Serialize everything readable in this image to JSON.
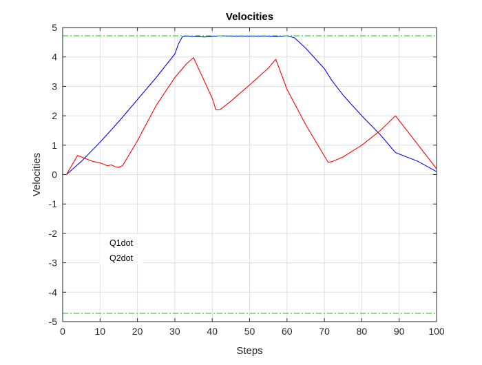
{
  "chart_data": {
    "type": "line",
    "title": "Velocities",
    "xlabel": "Steps",
    "ylabel": "Velocities",
    "xlim": [
      0,
      100
    ],
    "ylim": [
      -5,
      5
    ],
    "xticks": [
      0,
      10,
      20,
      30,
      40,
      50,
      60,
      70,
      80,
      90,
      100
    ],
    "yticks": [
      -5,
      -4,
      -3,
      -2,
      -1,
      0,
      1,
      2,
      3,
      4,
      5
    ],
    "grid": true,
    "legend": {
      "placement": "lower-left",
      "entries": [
        "Q1dot",
        "Q2dot"
      ]
    },
    "series": [
      {
        "name": "Q1dot",
        "color": "#0000ff",
        "x": [
          1,
          5,
          10,
          15,
          20,
          25,
          30,
          31,
          32,
          33,
          35,
          38,
          40,
          42,
          45,
          50,
          55,
          57,
          58,
          60,
          62,
          65,
          70,
          72,
          75,
          80,
          85,
          89,
          95,
          100
        ],
        "y": [
          0.0,
          0.45,
          1.1,
          1.8,
          2.55,
          3.3,
          4.1,
          4.45,
          4.69,
          4.71,
          4.7,
          4.68,
          4.7,
          4.72,
          4.71,
          4.71,
          4.71,
          4.69,
          4.7,
          4.72,
          4.65,
          4.3,
          3.6,
          3.2,
          2.7,
          2.0,
          1.35,
          0.75,
          0.45,
          0.1
        ]
      },
      {
        "name": "Q2dot",
        "color": "#ff0000",
        "x": [
          1,
          4,
          6,
          8,
          10,
          12,
          13,
          14,
          15,
          16,
          20,
          25,
          30,
          33,
          35,
          40,
          41,
          42,
          45,
          50,
          55,
          57,
          60,
          65,
          71,
          72,
          75,
          80,
          85,
          89,
          100
        ],
        "y": [
          0.0,
          0.65,
          0.55,
          0.45,
          0.4,
          0.3,
          0.33,
          0.27,
          0.25,
          0.3,
          1.15,
          2.35,
          3.3,
          3.75,
          3.98,
          2.6,
          2.2,
          2.2,
          2.5,
          3.05,
          3.62,
          3.92,
          2.9,
          1.7,
          0.42,
          0.44,
          0.6,
          1.0,
          1.5,
          2.0,
          0.2
        ]
      },
      {
        "name": "",
        "color": "#00cc00",
        "style": "dash-dot",
        "x": [
          0,
          100
        ],
        "y": [
          4.72,
          4.72
        ]
      },
      {
        "name": "",
        "color": "#00cc00",
        "style": "dash-dot",
        "x": [
          0,
          100
        ],
        "y": [
          -4.72,
          -4.72
        ]
      }
    ]
  }
}
